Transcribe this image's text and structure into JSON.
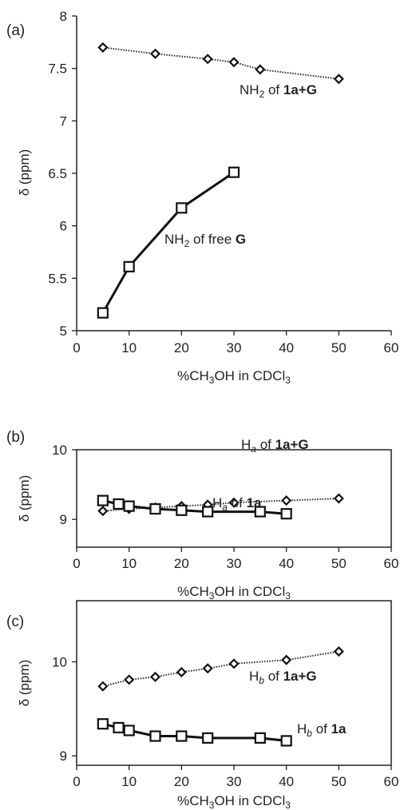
{
  "chart_data": [
    {
      "type": "line",
      "panel_label": "(a)",
      "xlabel": {
        "prefix": "%CH",
        "sub1": "3",
        "mid": "OH in CDCl",
        "sub2": "3"
      },
      "ylabel": "δ (ppm)",
      "xlim": [
        0,
        60
      ],
      "ylim": [
        5,
        8
      ],
      "xticks": [
        0,
        10,
        20,
        30,
        40,
        50,
        60
      ],
      "yticks": [
        5,
        5.5,
        6,
        6.5,
        7,
        7.5,
        8
      ],
      "ytick_labels": [
        "5",
        "5.5",
        "6",
        "6.5",
        "7",
        "7.5",
        "8"
      ],
      "series": [
        {
          "label": {
            "a": "NH",
            "sub": "2",
            "b": " of ",
            "bold": "1a+G",
            "c": ""
          },
          "marker": "diamond",
          "line": "dotted",
          "x": [
            5,
            15,
            25,
            30,
            35,
            50
          ],
          "y": [
            7.7,
            7.64,
            7.59,
            7.56,
            7.49,
            7.4
          ]
        },
        {
          "label": {
            "a": "NH",
            "sub": "2",
            "b": " of free ",
            "bold": "G",
            "c": ""
          },
          "marker": "square",
          "line": "solid",
          "x": [
            5,
            10,
            20,
            30
          ],
          "y": [
            5.17,
            5.61,
            6.17,
            6.51
          ]
        }
      ]
    },
    {
      "type": "line",
      "panel_label": "(b)",
      "xlabel": {
        "prefix": "%CH",
        "sub1": "3",
        "mid": "OH in CDCl",
        "sub2": "3"
      },
      "ylabel": "δ (ppm)",
      "xlim": [
        0,
        60
      ],
      "ylim": [
        8.6,
        10.0
      ],
      "xticks": [
        0,
        10,
        20,
        30,
        40,
        50,
        60
      ],
      "yticks": [
        9,
        10
      ],
      "ytick_labels": [
        "9",
        "10"
      ],
      "series": [
        {
          "label": {
            "a": "H",
            "sub": "a",
            "b": " of ",
            "bold": "1a+G",
            "c": ""
          },
          "marker": "diamond",
          "line": "dotted",
          "x": [
            5,
            10,
            15,
            20,
            25,
            30,
            40,
            50
          ],
          "y": [
            9.12,
            9.15,
            9.17,
            9.19,
            9.21,
            9.24,
            9.27,
            9.3
          ]
        },
        {
          "label": {
            "a": "H",
            "sub": "a",
            "b": " of ",
            "bold": "1a",
            "c": ""
          },
          "marker": "square",
          "line": "solid",
          "x": [
            5,
            8,
            10,
            15,
            20,
            25,
            35,
            40
          ],
          "y": [
            9.27,
            9.22,
            9.19,
            9.15,
            9.13,
            9.11,
            9.11,
            9.08
          ]
        }
      ]
    },
    {
      "type": "line",
      "panel_label": "(c)",
      "xlabel": {
        "prefix": "%CH",
        "sub1": "3",
        "mid": "OH in CDCl",
        "sub2": "3"
      },
      "ylabel": "δ (ppm)",
      "xlim": [
        0,
        60
      ],
      "ylim": [
        8.9,
        10.65
      ],
      "xticks": [
        0,
        10,
        20,
        30,
        40,
        50,
        60
      ],
      "yticks": [
        9,
        10
      ],
      "ytick_labels": [
        "9",
        "10"
      ],
      "series": [
        {
          "label": {
            "a": "H",
            "sub": "b",
            "b": " of ",
            "bold": "1a+G",
            "c": ""
          },
          "marker": "diamond",
          "line": "dotted",
          "x": [
            5,
            10,
            15,
            20,
            25,
            30,
            40,
            50
          ],
          "y": [
            9.74,
            9.81,
            9.84,
            9.89,
            9.93,
            9.98,
            10.02,
            10.11
          ]
        },
        {
          "label": {
            "a": "H",
            "sub": "b",
            "b": " of ",
            "bold": "1a",
            "c": ""
          },
          "marker": "square",
          "line": "solid",
          "x": [
            5,
            8,
            10,
            15,
            20,
            25,
            35,
            40
          ],
          "y": [
            9.34,
            9.3,
            9.27,
            9.21,
            9.21,
            9.19,
            9.19,
            9.16
          ]
        }
      ]
    }
  ]
}
